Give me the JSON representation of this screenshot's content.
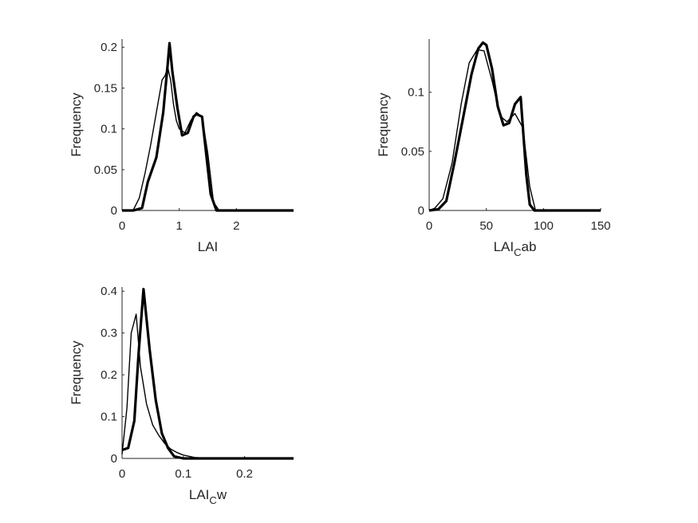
{
  "chart_data": [
    {
      "type": "line",
      "xlabel": "LAI",
      "xlabel_sub": "",
      "xlabel_suffix": "",
      "ylabel": "Frequency",
      "xlim": [
        0,
        3
      ],
      "ylim": [
        0,
        0.21
      ],
      "xticks": [
        0,
        1,
        2
      ],
      "xtick_labels": [
        "0",
        "1",
        "2"
      ],
      "yticks": [
        0,
        0.05,
        0.1,
        0.15,
        0.2
      ],
      "ytick_labels": [
        "0",
        "0.05",
        "0.1",
        "0.15",
        "0.2"
      ],
      "grid": false,
      "series": [
        {
          "style": "thin",
          "x": [
            0,
            0.1,
            0.2,
            0.3,
            0.4,
            0.5,
            0.6,
            0.7,
            0.75,
            0.8,
            0.85,
            0.9,
            0.95,
            1.0,
            1.1,
            1.2,
            1.3,
            1.4,
            1.5,
            1.6,
            1.7,
            2.0,
            2.5,
            3.0
          ],
          "y": [
            0,
            0,
            0.001,
            0.015,
            0.045,
            0.08,
            0.12,
            0.16,
            0.165,
            0.175,
            0.16,
            0.13,
            0.11,
            0.1,
            0.095,
            0.11,
            0.12,
            0.115,
            0.07,
            0.01,
            0,
            0,
            0,
            0
          ]
        },
        {
          "style": "thick",
          "x": [
            0,
            0.2,
            0.35,
            0.45,
            0.6,
            0.72,
            0.8,
            0.83,
            0.88,
            0.97,
            1.05,
            1.15,
            1.25,
            1.3,
            1.4,
            1.55,
            1.65,
            2.0,
            2.5,
            3.0
          ],
          "y": [
            0,
            0,
            0.003,
            0.035,
            0.065,
            0.12,
            0.18,
            0.205,
            0.17,
            0.125,
            0.092,
            0.095,
            0.115,
            0.118,
            0.115,
            0.02,
            0,
            0,
            0,
            0
          ]
        }
      ]
    },
    {
      "type": "line",
      "xlabel": "LAI",
      "xlabel_sub": "C",
      "xlabel_suffix": "ab",
      "ylabel": "Frequency",
      "xlim": [
        0,
        150
      ],
      "ylim": [
        0,
        0.145
      ],
      "xticks": [
        0,
        50,
        100,
        150
      ],
      "xtick_labels": [
        "0",
        "50",
        "100",
        "150"
      ],
      "yticks": [
        0,
        0.05,
        0.1
      ],
      "ytick_labels": [
        "0",
        "0.05",
        "0.1"
      ],
      "grid": false,
      "series": [
        {
          "style": "thin",
          "x": [
            0,
            5,
            12,
            20,
            28,
            35,
            42,
            48,
            55,
            62,
            68,
            75,
            82,
            88,
            93,
            100,
            150
          ],
          "y": [
            0,
            0.002,
            0.01,
            0.04,
            0.09,
            0.125,
            0.136,
            0.135,
            0.11,
            0.08,
            0.075,
            0.082,
            0.07,
            0.02,
            0,
            0,
            0
          ]
        },
        {
          "style": "thick",
          "x": [
            0,
            8,
            15,
            22,
            30,
            37,
            43,
            47,
            50,
            55,
            60,
            65,
            70,
            75,
            80,
            85,
            88,
            92,
            100,
            150
          ],
          "y": [
            0,
            0.001,
            0.008,
            0.04,
            0.08,
            0.115,
            0.137,
            0.142,
            0.14,
            0.12,
            0.088,
            0.072,
            0.074,
            0.09,
            0.096,
            0.03,
            0.005,
            0,
            0,
            0
          ]
        }
      ]
    },
    {
      "type": "line",
      "xlabel": "LAI",
      "xlabel_sub": "C",
      "xlabel_suffix": "w",
      "ylabel": "Frequency",
      "xlim": [
        0,
        0.28
      ],
      "ylim": [
        0,
        0.41
      ],
      "xticks": [
        0,
        0.1,
        0.2
      ],
      "xtick_labels": [
        "0",
        "0.1",
        "0.2"
      ],
      "yticks": [
        0,
        0.1,
        0.2,
        0.3,
        0.4
      ],
      "ytick_labels": [
        "0",
        "0.1",
        "0.2",
        "0.3",
        "0.4"
      ],
      "grid": false,
      "series": [
        {
          "style": "thin",
          "x": [
            0,
            0.008,
            0.015,
            0.023,
            0.03,
            0.04,
            0.05,
            0.06,
            0.07,
            0.08,
            0.09,
            0.1,
            0.12,
            0.15,
            0.2,
            0.28
          ],
          "y": [
            0.01,
            0.12,
            0.3,
            0.345,
            0.22,
            0.13,
            0.08,
            0.055,
            0.035,
            0.022,
            0.014,
            0.008,
            0.002,
            0,
            0,
            0
          ]
        },
        {
          "style": "thick",
          "x": [
            0,
            0.01,
            0.02,
            0.027,
            0.035,
            0.045,
            0.055,
            0.065,
            0.075,
            0.085,
            0.1,
            0.12,
            0.2,
            0.28
          ],
          "y": [
            0.02,
            0.025,
            0.09,
            0.25,
            0.405,
            0.26,
            0.14,
            0.06,
            0.025,
            0.005,
            0,
            0,
            0,
            0
          ]
        }
      ]
    }
  ]
}
